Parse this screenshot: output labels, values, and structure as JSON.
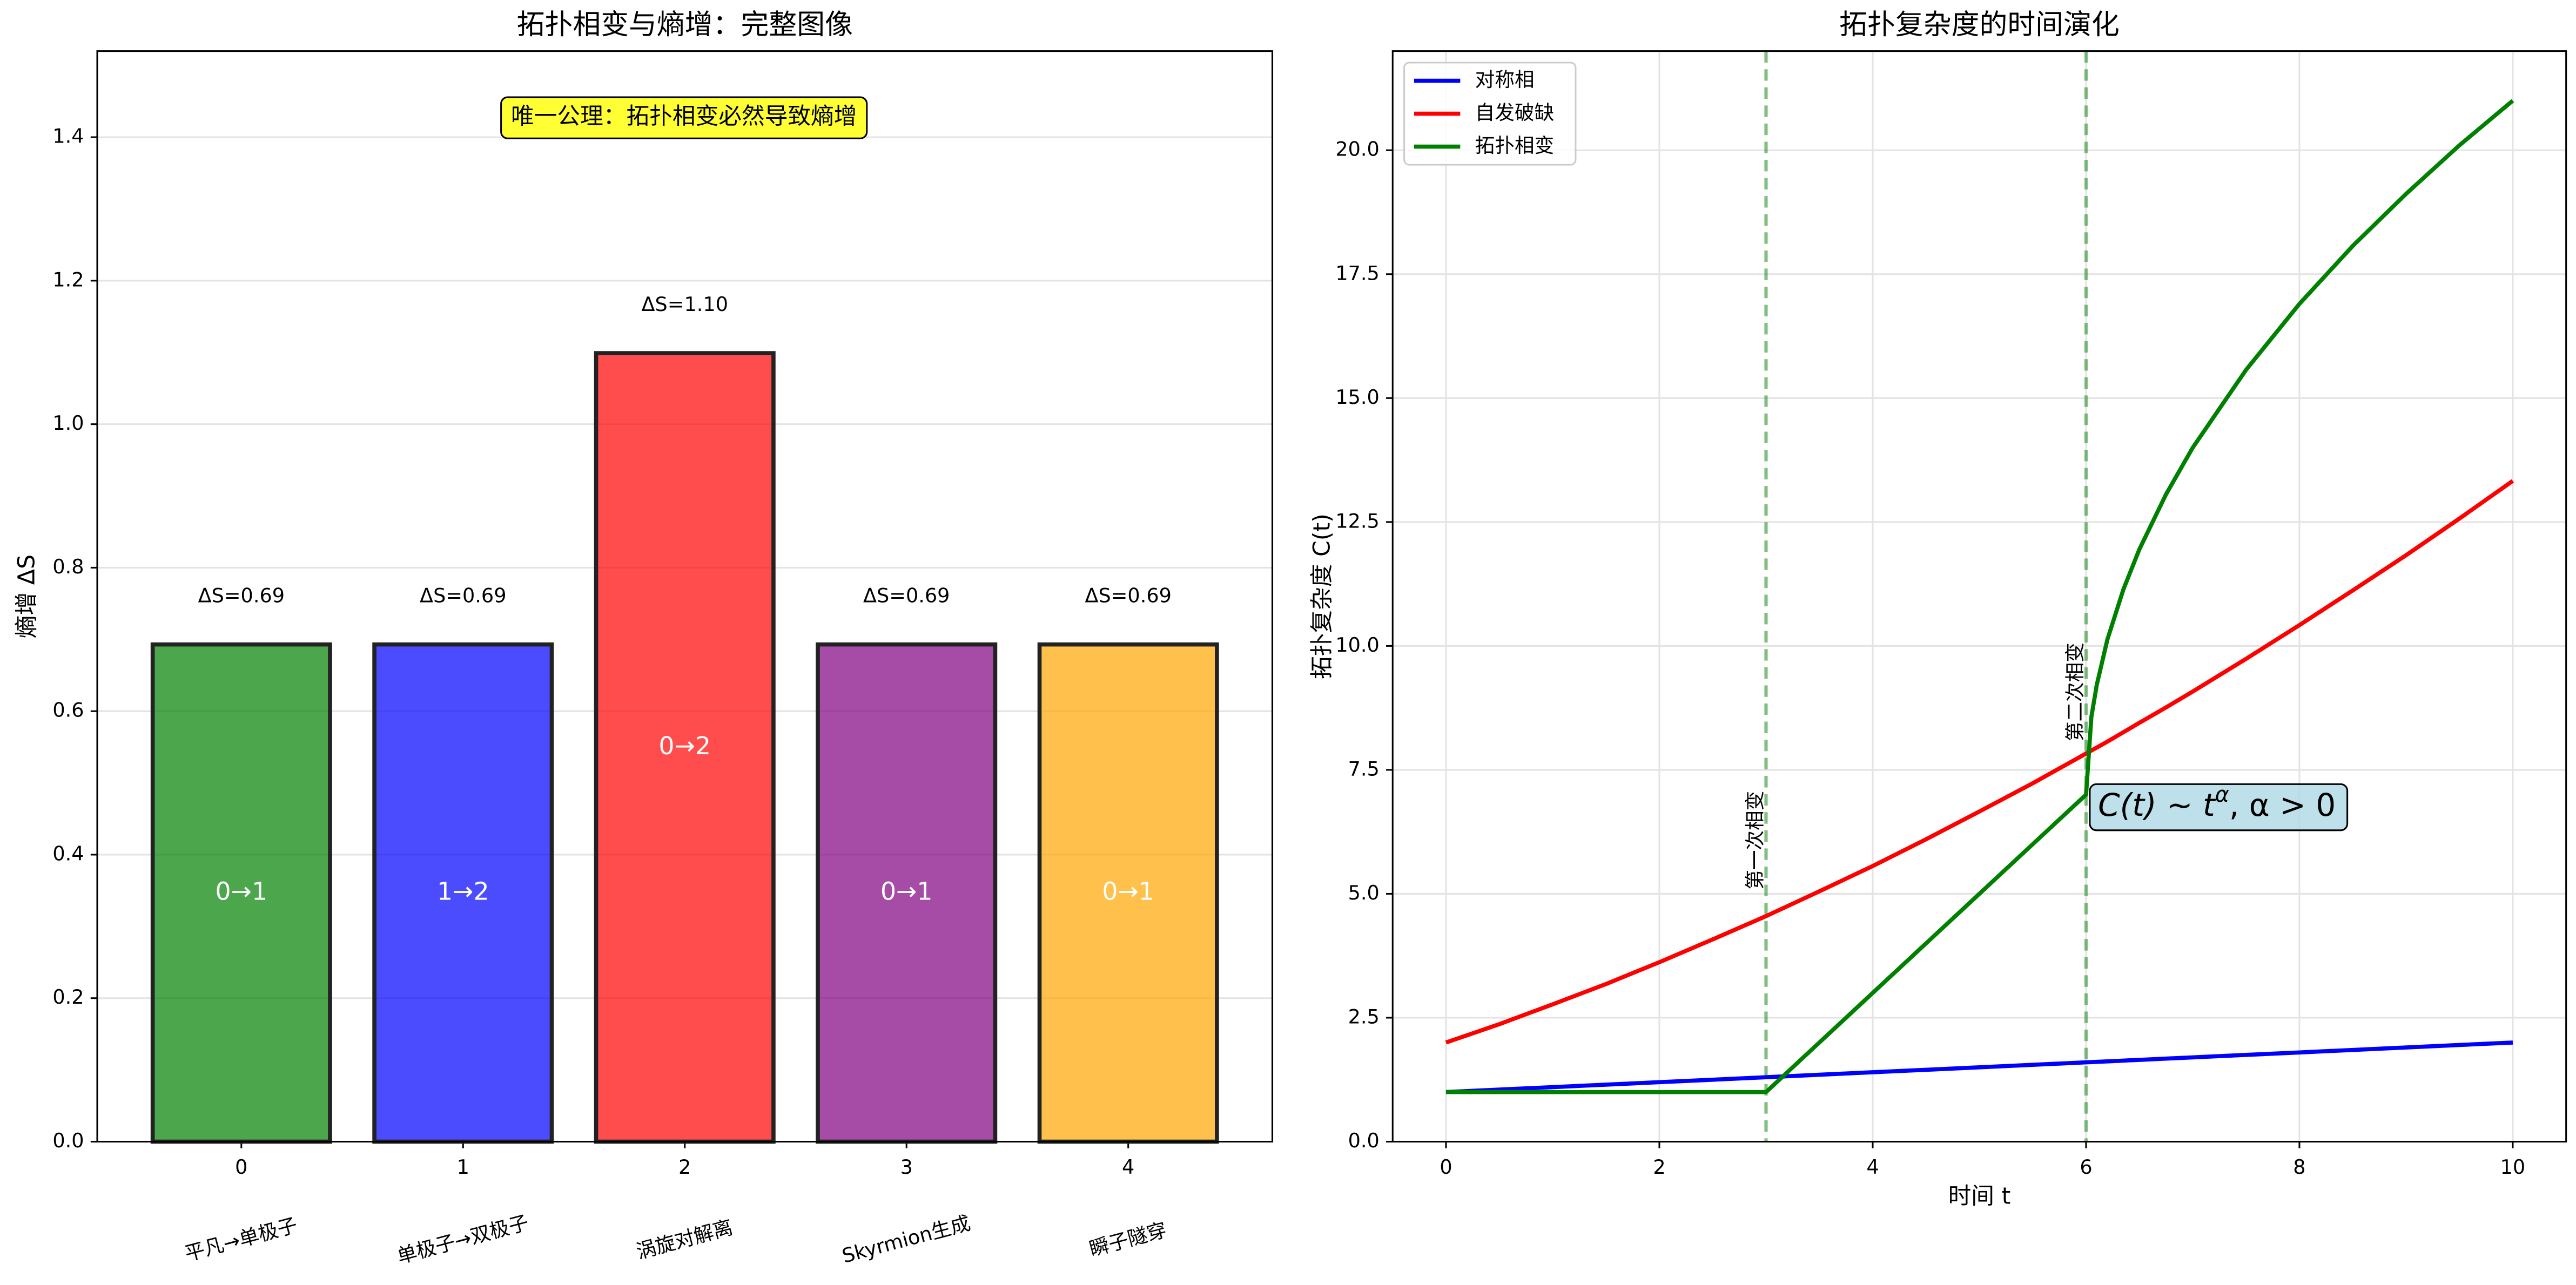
{
  "chart_data": [
    {
      "type": "bar",
      "title": "拓扑相变与熵增：完整图像",
      "ylabel": "熵增 ΔS",
      "annotation": "唯一公理：拓扑相变必然导致熵增",
      "xticks": [
        0,
        1,
        2,
        3,
        4
      ],
      "xlim": [
        -0.65,
        4.65
      ],
      "categories": [
        "平凡→单极子",
        "单极子→双极子",
        "涡旋对解离",
        "Skyrmion生成",
        "瞬子隧穿"
      ],
      "values": [
        0.693,
        0.693,
        1.099,
        0.693,
        0.693
      ],
      "value_labels": [
        "ΔS=0.69",
        "ΔS=0.69",
        "ΔS=1.10",
        "ΔS=0.69",
        "ΔS=0.69"
      ],
      "transitions": [
        "0→1",
        "1→2",
        "0→2",
        "0→1",
        "0→1"
      ],
      "colors": [
        "#008000",
        "#0000ff",
        "#ff0000",
        "#800080",
        "#ffa500"
      ],
      "alpha": 0.7,
      "ylim": [
        0,
        1.52
      ],
      "yticks": [
        {
          "value": 0,
          "label": "0.0"
        },
        0.2,
        0.4,
        0.6,
        0.8,
        {
          "value": 1,
          "label": "1.0"
        },
        1.2,
        1.4
      ],
      "grid": "y"
    },
    {
      "type": "line",
      "title": "拓扑复杂度的时间演化",
      "xlabel": "时间 t",
      "ylabel": "拓扑复杂度 C(t)",
      "x": [
        0,
        0.5,
        1,
        1.5,
        2,
        2.5,
        3,
        3.5,
        4,
        4.5,
        5,
        5.5,
        6,
        6.05,
        6.1,
        6.2,
        6.35,
        6.5,
        6.75,
        7,
        7.5,
        8,
        8.5,
        9,
        9.5,
        10
      ],
      "series": [
        {
          "name": "对称相",
          "color": "#0000ff",
          "values": [
            1,
            1.05,
            1.1,
            1.15,
            1.2,
            1.25,
            1.3,
            1.35,
            1.4,
            1.45,
            1.5,
            1.55,
            1.6,
            1.605,
            1.61,
            1.62,
            1.635,
            1.65,
            1.675,
            1.7,
            1.75,
            1.8,
            1.85,
            1.9,
            1.95,
            2
          ]
        },
        {
          "name": "自发破缺",
          "color": "#ff0000",
          "values": [
            2,
            2.37,
            2.77,
            3.18,
            3.62,
            4.08,
            4.55,
            5.05,
            5.56,
            6.1,
            6.66,
            7.23,
            7.83,
            7.89,
            7.95,
            8.07,
            8.26,
            8.45,
            8.76,
            9.08,
            9.74,
            10.42,
            11.12,
            11.83,
            12.57,
            13.33
          ]
        },
        {
          "name": "拓扑相变",
          "color": "#008000",
          "values": [
            1,
            1,
            1,
            1,
            1,
            1,
            1,
            2,
            3,
            4,
            5,
            6,
            7,
            8.57,
            9.21,
            10.13,
            11.14,
            11.95,
            13.06,
            14,
            15.57,
            16.9,
            18.07,
            19.12,
            20.1,
            21
          ]
        }
      ],
      "vlines": [
        {
          "x": 3,
          "label": "第一次相变"
        },
        {
          "x": 6,
          "label": "第二次相变"
        }
      ],
      "annotation": {
        "base": "C(t) ~ t",
        "sup": "α",
        "rest": ", α > 0"
      },
      "xlim": [
        -0.5,
        10.5
      ],
      "xticks": [
        0,
        2,
        4,
        6,
        8,
        10
      ],
      "ylim": [
        0,
        22
      ],
      "yticks": [
        {
          "value": 0,
          "label": "0.0"
        },
        2.5,
        {
          "value": 5,
          "label": "5.0"
        },
        7.5,
        {
          "value": 10,
          "label": "10.0"
        },
        12.5,
        {
          "value": 15,
          "label": "15.0"
        },
        17.5,
        {
          "value": 20,
          "label": "20.0"
        }
      ],
      "grid": "both",
      "legend": "upper-left"
    }
  ]
}
